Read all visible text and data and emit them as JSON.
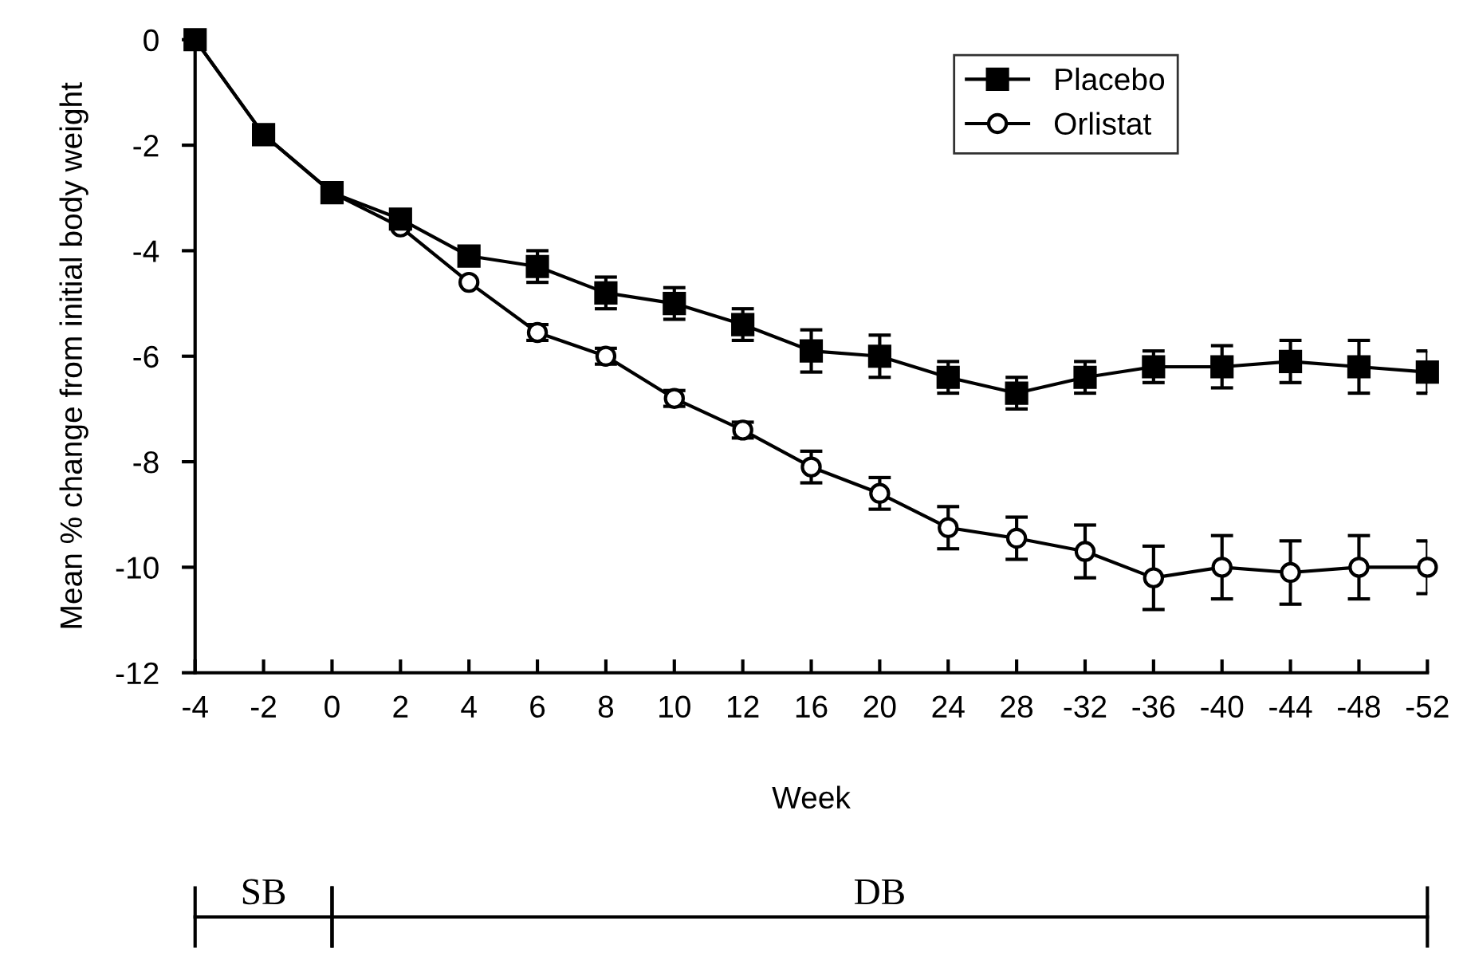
{
  "chart_data": {
    "type": "line",
    "xlabel": "Week",
    "ylabel": "Mean % change from initial body weight",
    "categories": [
      "-4",
      "-2",
      "0",
      "2",
      "4",
      "6",
      "8",
      "10",
      "12",
      "16",
      "20",
      "24",
      "28",
      "-32",
      "-36",
      "-40",
      "-44",
      "-48",
      "-52"
    ],
    "series": [
      {
        "name": "Placebo",
        "color": "#000000",
        "marker": "square",
        "values": [
          0,
          -1.8,
          -2.9,
          -3.4,
          -4.1,
          -4.3,
          -4.8,
          -5.0,
          -5.4,
          -5.9,
          -6.0,
          -6.4,
          -6.7,
          -6.4,
          -6.2,
          -6.2,
          -6.1,
          -6.2,
          -6.3
        ],
        "errors": [
          null,
          null,
          null,
          null,
          0.1,
          0.3,
          0.3,
          0.3,
          0.3,
          0.4,
          0.4,
          0.3,
          0.3,
          0.3,
          0.3,
          0.4,
          0.4,
          0.5,
          0.4
        ]
      },
      {
        "name": "Orlistat",
        "color": "#000000",
        "marker": "circle",
        "values": [
          0,
          -1.8,
          -2.9,
          -3.55,
          -4.6,
          -5.55,
          -6.0,
          -6.8,
          -7.4,
          -8.1,
          -8.6,
          -9.25,
          -9.45,
          -9.7,
          -10.2,
          -10.0,
          -10.1,
          -10.0,
          -10.0
        ],
        "errors": [
          null,
          null,
          null,
          null,
          null,
          0.15,
          0.15,
          0.15,
          0.15,
          0.3,
          0.3,
          0.4,
          0.4,
          0.5,
          0.6,
          0.6,
          0.6,
          0.6,
          0.5
        ]
      }
    ],
    "ylim": [
      -12,
      0
    ],
    "yticks": [
      -12,
      -10,
      -8,
      -6,
      -4,
      -2,
      0
    ],
    "grid": false,
    "legend": "top right",
    "line_style": "solid",
    "annotations": [
      "SB",
      "DB"
    ]
  }
}
